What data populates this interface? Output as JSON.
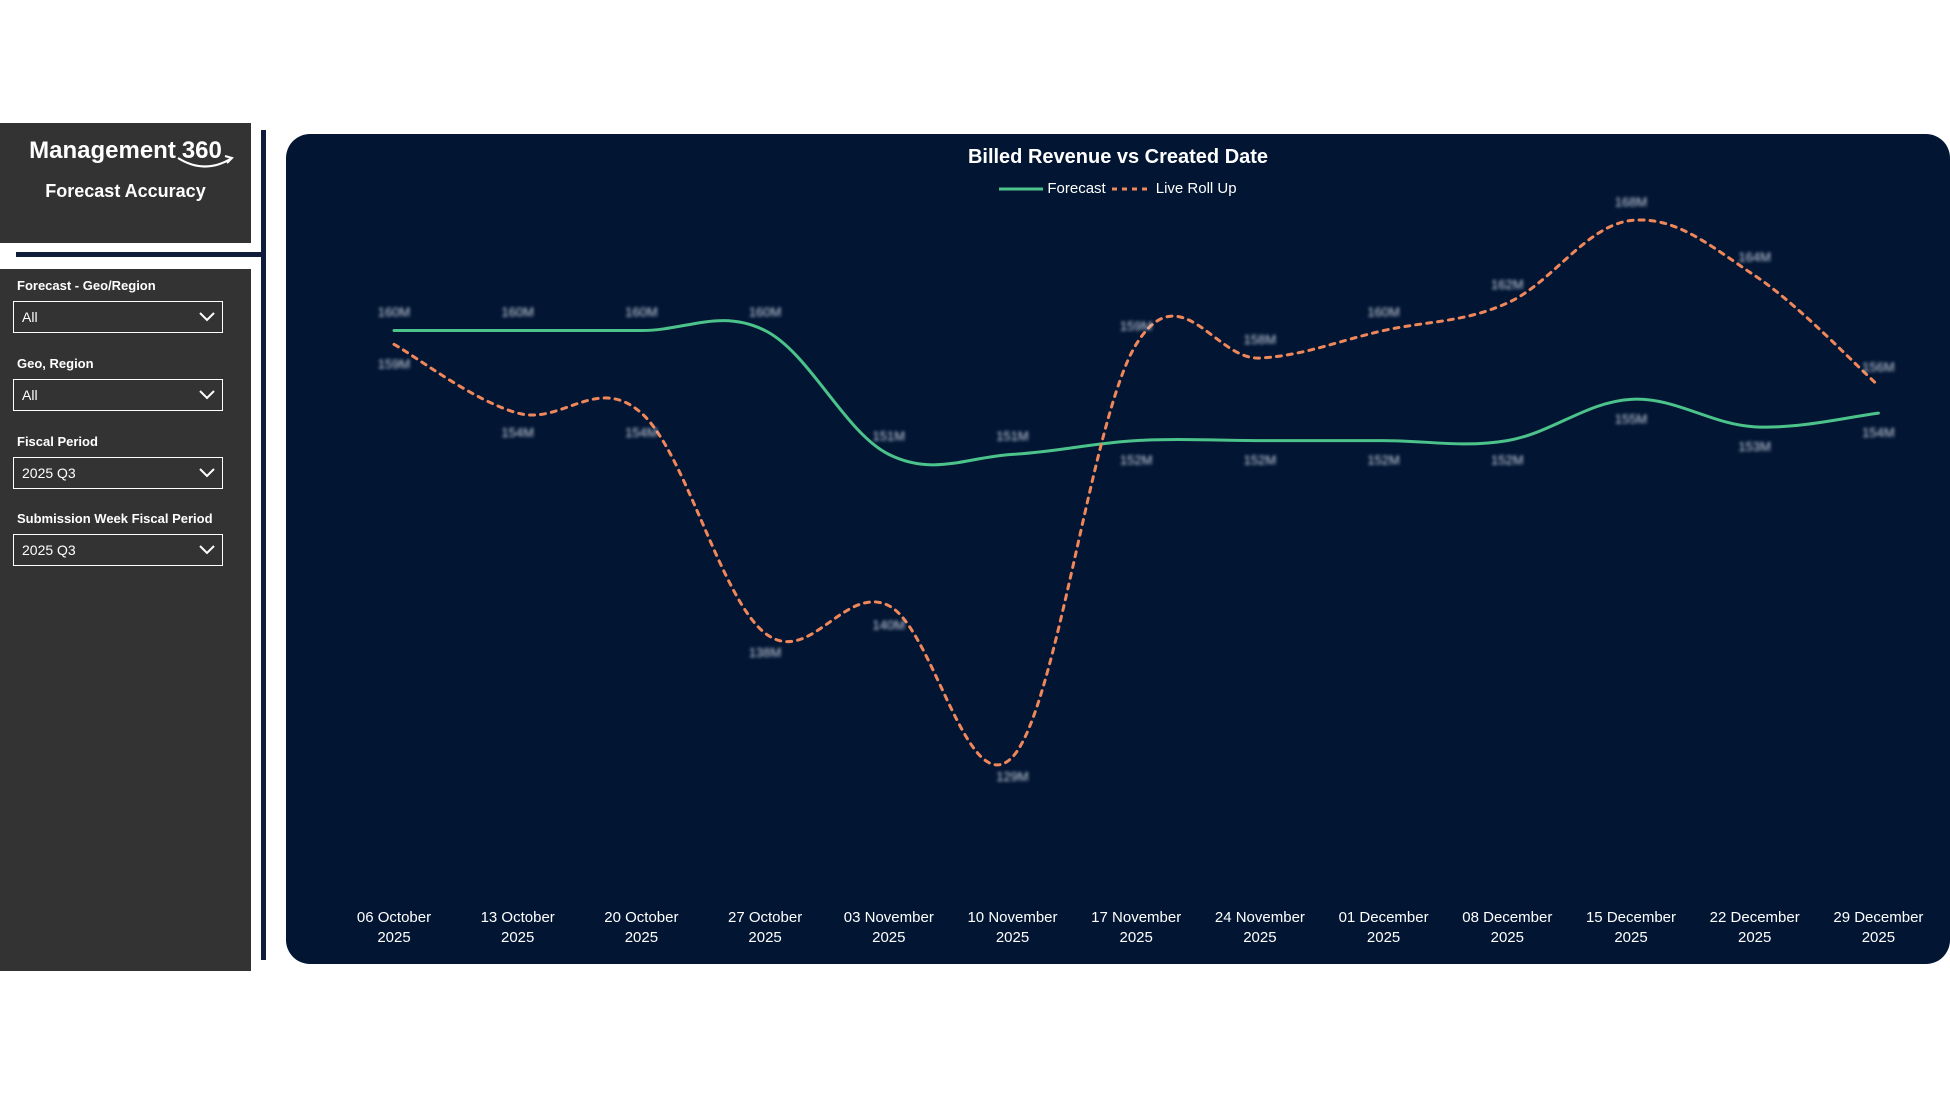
{
  "app": {
    "brand_text": "Management",
    "brand_number": "360",
    "page_subtitle": "Forecast Accuracy"
  },
  "filters": [
    {
      "label": "Forecast - Geo/Region",
      "value": "All"
    },
    {
      "label": "Geo, Region",
      "value": "All"
    },
    {
      "label": "Fiscal Period",
      "value": "2025 Q3"
    },
    {
      "label": "Submission Week Fiscal Period",
      "value": "2025 Q3"
    }
  ],
  "colors": {
    "panel_bg": "#333333",
    "chart_bg": "#021634",
    "forecast_line": "#4cc38a",
    "live_roll_up_line": "#f0875a",
    "divider": "#0f1d3a"
  },
  "chart_data": {
    "type": "line",
    "title": "Billed Revenue vs Created Date",
    "xlabel": "",
    "ylabel": "",
    "ylim": [
      125,
      170
    ],
    "legend_position": "top-center",
    "grid": false,
    "categories": [
      [
        "06 October",
        "2025"
      ],
      [
        "13 October",
        "2025"
      ],
      [
        "20 October",
        "2025"
      ],
      [
        "27 October",
        "2025"
      ],
      [
        "03 November",
        "2025"
      ],
      [
        "10 November",
        "2025"
      ],
      [
        "17 November",
        "2025"
      ],
      [
        "24 November",
        "2025"
      ],
      [
        "01 December",
        "2025"
      ],
      [
        "08 December",
        "2025"
      ],
      [
        "15 December",
        "2025"
      ],
      [
        "22 December",
        "2025"
      ],
      [
        "29 December",
        "2025"
      ]
    ],
    "series": [
      {
        "name": "Forecast",
        "style": "solid",
        "values": [
          160,
          160,
          160,
          160,
          151,
          151,
          152,
          152,
          152,
          152,
          155,
          153,
          154
        ],
        "labels": [
          "160M",
          "160M",
          "160M",
          "160M",
          "151M",
          "151M",
          "152M",
          "152M",
          "152M",
          "152M",
          "155M",
          "153M",
          "154M"
        ]
      },
      {
        "name": "Live Roll Up",
        "style": "dashed",
        "values": [
          159,
          154,
          154,
          138,
          140,
          129,
          159,
          158,
          160,
          162,
          168,
          164,
          156
        ],
        "labels": [
          "159M",
          "154M",
          "154M",
          "138M",
          "140M",
          "129M",
          "159M",
          "158M",
          "160M",
          "162M",
          "168M",
          "164M",
          "156M"
        ]
      }
    ]
  }
}
